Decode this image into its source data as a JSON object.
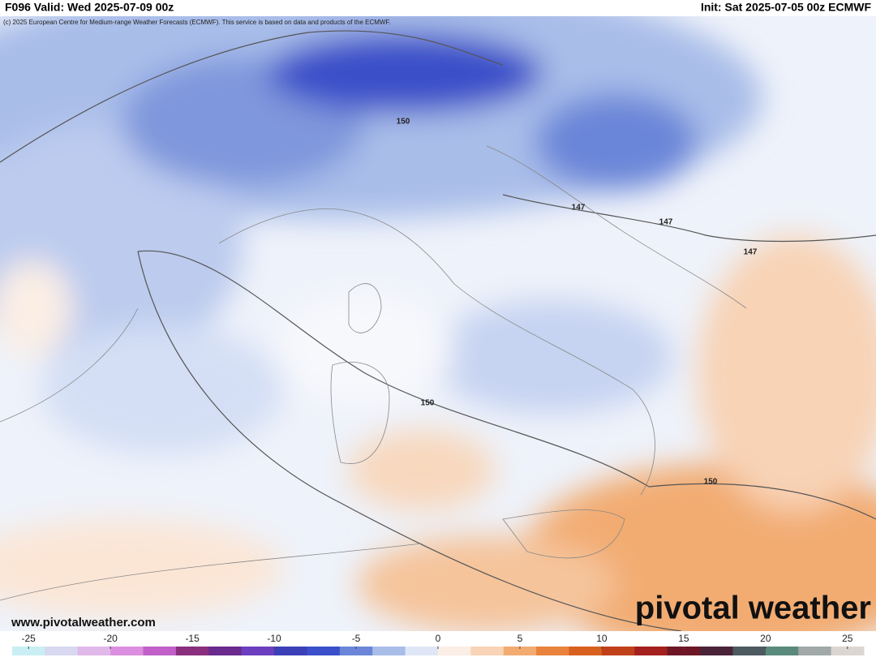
{
  "header": {
    "left": "F096 Valid: Wed 2025-07-09 00z",
    "right": "Init: Sat 2025-07-05 00z ECMWF"
  },
  "copyright": "(c) 2025 European Centre for Medium-range Weather Forecasts (ECMWF). This service is based on data and products of the ECMWF.",
  "contour_labels": [
    150,
    147,
    147,
    147,
    150,
    150
  ],
  "watermark": "www.pivotalweather.com",
  "logo": "pivotal weather",
  "colorbar": {
    "range": [
      -26,
      26
    ],
    "ticks": [
      -25,
      -20,
      -15,
      -10,
      -5,
      0,
      5,
      10,
      15,
      20,
      25
    ],
    "colors": [
      "#c9eef3",
      "#d8d8f0",
      "#e0b8ea",
      "#dc8fe0",
      "#c060c8",
      "#8a2e7e",
      "#6a2a8e",
      "#6b3fc0",
      "#3b3fb8",
      "#3a4fc9",
      "#6b86d8",
      "#a9bde9",
      "#dfe7f7",
      "#fbeee5",
      "#f8d3b6",
      "#f2ac72",
      "#e8823d",
      "#d8601e",
      "#c0401a",
      "#a3201e",
      "#6e1626",
      "#4a2338",
      "#4d5a60",
      "#5a8a7c",
      "#a0a8a8",
      "#dcd6d0"
    ]
  }
}
